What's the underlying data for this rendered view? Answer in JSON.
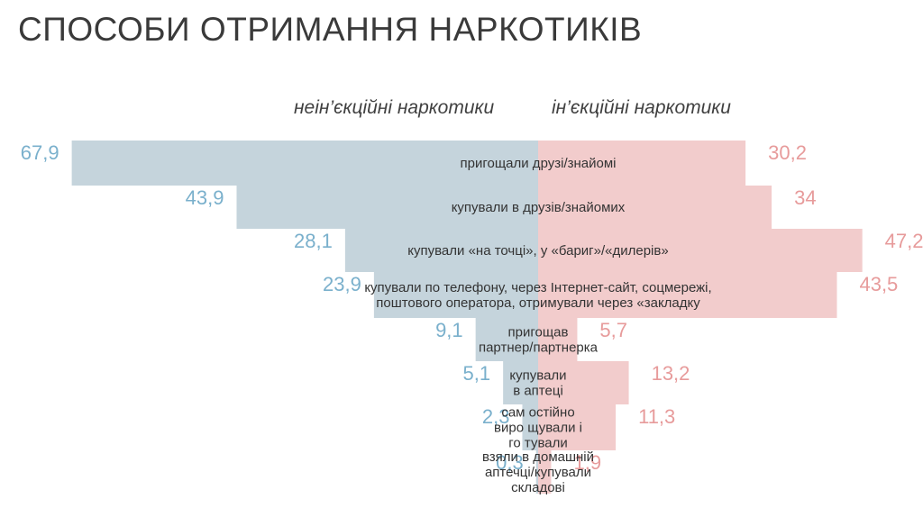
{
  "title": "СПОСОБИ ОТРИМАННЯ НАРКОТИКІВ",
  "colors": {
    "left": "#c5d4dc",
    "right": "#f2cccc",
    "left_text": "#7ab0cc",
    "right_text": "#e79b9b"
  },
  "chart_data": {
    "type": "bar",
    "orientation": "horizontal-butterfly",
    "series": [
      {
        "name": "неін’єкційні наркотики",
        "values": [
          67.9,
          43.9,
          28.1,
          23.9,
          9.1,
          5.1,
          2.3,
          0.3
        ],
        "labels": [
          "67,9",
          "43,9",
          "28,1",
          "23,9",
          "9,1",
          "5,1",
          "2,3",
          "0,3"
        ]
      },
      {
        "name": "ін’єкційні наркотики",
        "values": [
          30.2,
          34,
          47.2,
          43.5,
          5.7,
          13.2,
          11.3,
          1.9
        ],
        "labels": [
          "30,2",
          "34",
          "47,2",
          "43,5",
          "5,7",
          "13,2",
          "11,3",
          "1,9"
        ]
      }
    ],
    "categories": [
      [
        "пригощали друзі/знайомі"
      ],
      [
        "купували в друзів/знайомих"
      ],
      [
        "купували «на точці», у «бариг»/«дилерів»"
      ],
      [
        "купували по телефону, через Інтернет-сайт, соцмережі,",
        "поштового оператора, отримували через «закладку"
      ],
      [
        "пригощав",
        "партнер/партнерка"
      ],
      [
        "купували",
        "в аптеці"
      ],
      [
        "сам остійно",
        "виро щували і",
        "го тували"
      ],
      [
        "взяли в домашній",
        "аптечці/купували",
        "складові"
      ]
    ],
    "grid": false,
    "legend": "top"
  }
}
